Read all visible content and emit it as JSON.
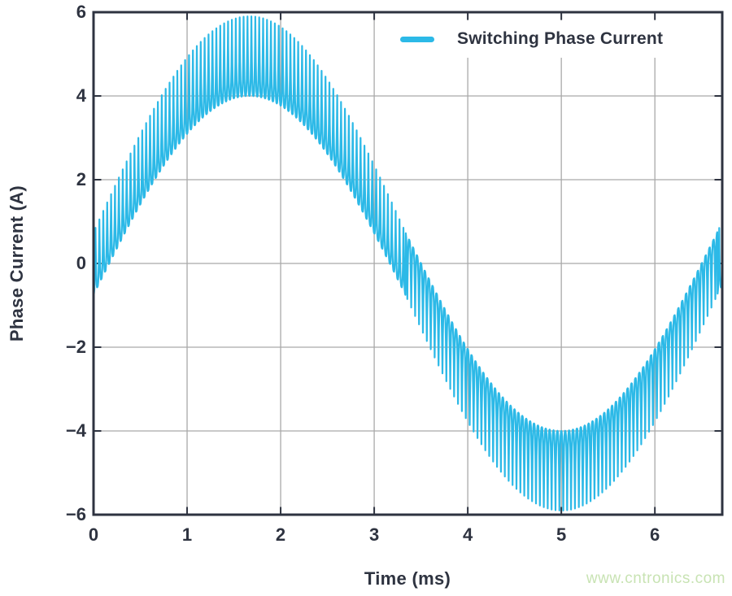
{
  "figure": {
    "watermark": "www.cntronics.com"
  },
  "colors": {
    "line": "#2CB9E7",
    "axis_frame": "#2E3340",
    "grid": "#A9A9A9",
    "text": "#2E3340",
    "watermark": "#C8E3B3",
    "background": "#FFFFFF"
  },
  "chart_data": {
    "type": "line",
    "title": "",
    "xlabel": "Time (ms)",
    "ylabel": "Phase Current (A)",
    "xlim": [
      0,
      6.72
    ],
    "ylim": [
      -6,
      6
    ],
    "xtick_values": [
      0,
      1,
      2,
      3,
      4,
      5,
      6
    ],
    "xtick_labels": [
      "0",
      "1",
      "2",
      "3",
      "4",
      "5",
      "6"
    ],
    "ytick_values": [
      6,
      4,
      2,
      0,
      -2,
      -4,
      -6
    ],
    "ytick_labels": [
      "6",
      "4",
      "2",
      "0",
      "−2",
      "−4",
      "−6"
    ],
    "grid": true,
    "legend": {
      "position": "top-right",
      "entries": [
        {
          "label": "Switching Phase Current",
          "color": "#2CB9E7"
        }
      ]
    },
    "series": [
      {
        "name": "Switching Phase Current",
        "description": "Sinusoidal motor phase current with superimposed PWM switching ripple",
        "waveform": {
          "fundamental_amplitude_A": 4.95,
          "fundamental_period_ms": 6.667,
          "fundamental_frequency_Hz": 150,
          "fundamental_phase_deg": 0,
          "switching_frequency_kHz": 24,
          "ripple_amplitude_base_A": 0.75,
          "ripple_amplitude_extra_at_peak_A": 0.2,
          "spike_sharpness": 3,
          "envelope_upper_peak": [
            1.67,
            5.9
          ],
          "envelope_inner_at_peak": [
            1.67,
            4.0
          ],
          "envelope_lower_trough": [
            5.0,
            -5.9
          ],
          "zero_crossings_ms": [
            0,
            3.33,
            6.67
          ]
        }
      }
    ]
  }
}
